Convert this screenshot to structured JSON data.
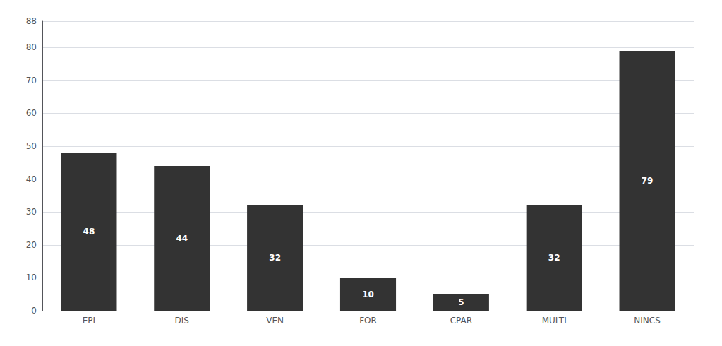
{
  "chart_data": {
    "type": "bar",
    "categories": [
      "EPI",
      "DIS",
      "VEN",
      "FOR",
      "CPAR",
      "MULTI",
      "NINCS"
    ],
    "values": [
      48,
      44,
      32,
      10,
      5,
      32,
      79
    ],
    "color": "#333333",
    "ylim": [
      0,
      88
    ],
    "yticks": [
      0,
      10,
      20,
      30,
      40,
      50,
      60,
      70,
      80
    ],
    "grid": true,
    "data_labels": true
  }
}
